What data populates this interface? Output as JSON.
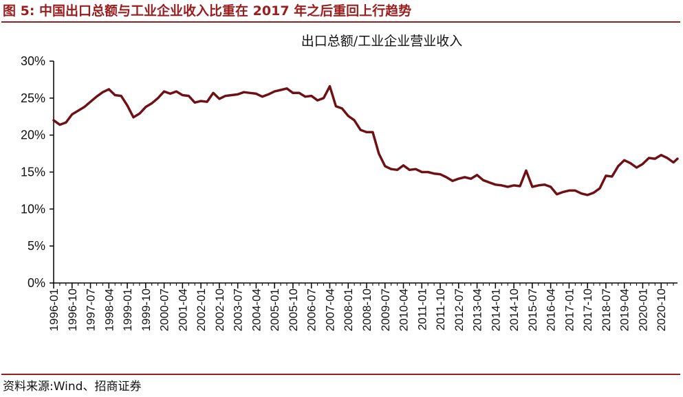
{
  "header": {
    "figure_title": "图 5:  中国出口总额与工业企业收入比重在 2017 年之后重回上行趋势"
  },
  "footer": {
    "source": "资料来源:Wind、招商证券"
  },
  "colors": {
    "accent": "#9b1c1c",
    "line": "#6e1014"
  },
  "chart_data": {
    "type": "line",
    "title": "出口总额/工业企业营业收入",
    "xlabel": "",
    "ylabel": "",
    "ylim": [
      0,
      30
    ],
    "yticks": [
      0,
      5,
      10,
      15,
      20,
      25,
      30
    ],
    "ytick_labels": [
      "0%",
      "5%",
      "10%",
      "15%",
      "20%",
      "25%",
      "30%"
    ],
    "x_range": [
      "1996-01",
      "2021-06"
    ],
    "xtick_labels": [
      "1996-01",
      "1996-10",
      "1997-07",
      "1998-04",
      "1999-01",
      "1999-10",
      "2000-07",
      "2001-04",
      "2002-01",
      "2002-10",
      "2003-07",
      "2004-04",
      "2005-01",
      "2005-10",
      "2006-07",
      "2007-04",
      "2008-01",
      "2008-10",
      "2009-07",
      "2010-04",
      "2011-01",
      "2011-10",
      "2012-07",
      "2013-04",
      "2014-01",
      "2014-10",
      "2015-07",
      "2016-04",
      "2017-01",
      "2017-10",
      "2018-07",
      "2019-04",
      "2020-01",
      "2020-10"
    ],
    "grid": false,
    "legend": "none",
    "series": [
      {
        "x": [
          "1996-01",
          "1996-04",
          "1996-07",
          "1996-10",
          "1997-01",
          "1997-04",
          "1997-07",
          "1997-10",
          "1998-01",
          "1998-04",
          "1998-07",
          "1998-10",
          "1999-01",
          "1999-04",
          "1999-07",
          "1999-10",
          "2000-01",
          "2000-04",
          "2000-07",
          "2000-10",
          "2001-01",
          "2001-04",
          "2001-07",
          "2001-10",
          "2002-01",
          "2002-04",
          "2002-07",
          "2002-10",
          "2003-01",
          "2003-04",
          "2003-07",
          "2003-10",
          "2004-01",
          "2004-04",
          "2004-07",
          "2004-10",
          "2005-01",
          "2005-04",
          "2005-07",
          "2005-10",
          "2006-01",
          "2006-04",
          "2006-07",
          "2006-10",
          "2007-01",
          "2007-04",
          "2007-07",
          "2007-10",
          "2008-01",
          "2008-04",
          "2008-07",
          "2008-10",
          "2009-01",
          "2009-04",
          "2009-07",
          "2009-10",
          "2010-01",
          "2010-04",
          "2010-07",
          "2010-10",
          "2011-01",
          "2011-04",
          "2011-07",
          "2011-10",
          "2012-01",
          "2012-04",
          "2012-07",
          "2012-10",
          "2013-01",
          "2013-04",
          "2013-07",
          "2013-10",
          "2014-01",
          "2014-04",
          "2014-07",
          "2014-10",
          "2015-01",
          "2015-04",
          "2015-07",
          "2015-10",
          "2016-01",
          "2016-04",
          "2016-07",
          "2016-10",
          "2017-01",
          "2017-04",
          "2017-07",
          "2017-10",
          "2018-01",
          "2018-04",
          "2018-07",
          "2018-10",
          "2019-01",
          "2019-04",
          "2019-07",
          "2019-10",
          "2020-01",
          "2020-04",
          "2020-07",
          "2020-10",
          "2021-01",
          "2021-04",
          "2021-06"
        ],
        "values": [
          22.0,
          21.4,
          21.7,
          22.8,
          23.3,
          23.8,
          24.5,
          25.2,
          25.8,
          26.2,
          25.4,
          25.3,
          24.0,
          22.4,
          22.9,
          23.8,
          24.3,
          25.0,
          25.9,
          25.6,
          25.9,
          25.4,
          25.3,
          24.4,
          24.6,
          24.5,
          25.7,
          24.9,
          25.3,
          25.4,
          25.5,
          25.8,
          25.7,
          25.6,
          25.2,
          25.5,
          25.9,
          26.1,
          26.3,
          25.7,
          25.7,
          25.2,
          25.3,
          24.7,
          25.0,
          26.6,
          23.9,
          23.6,
          22.6,
          22.0,
          20.7,
          20.4,
          20.4,
          17.5,
          15.8,
          15.4,
          15.3,
          15.9,
          15.3,
          15.4,
          15.0,
          15.0,
          14.8,
          14.7,
          14.3,
          13.8,
          14.1,
          14.3,
          14.1,
          14.6,
          13.9,
          13.6,
          13.3,
          13.2,
          13.0,
          13.2,
          13.1,
          15.2,
          13.0,
          13.2,
          13.3,
          13.0,
          12.0,
          12.3,
          12.5,
          12.5,
          12.1,
          11.9,
          12.2,
          12.8,
          14.5,
          14.4,
          15.8,
          16.6,
          16.2,
          15.6,
          16.1,
          16.9,
          16.8,
          17.3,
          16.9,
          16.3,
          16.8
        ]
      }
    ]
  }
}
